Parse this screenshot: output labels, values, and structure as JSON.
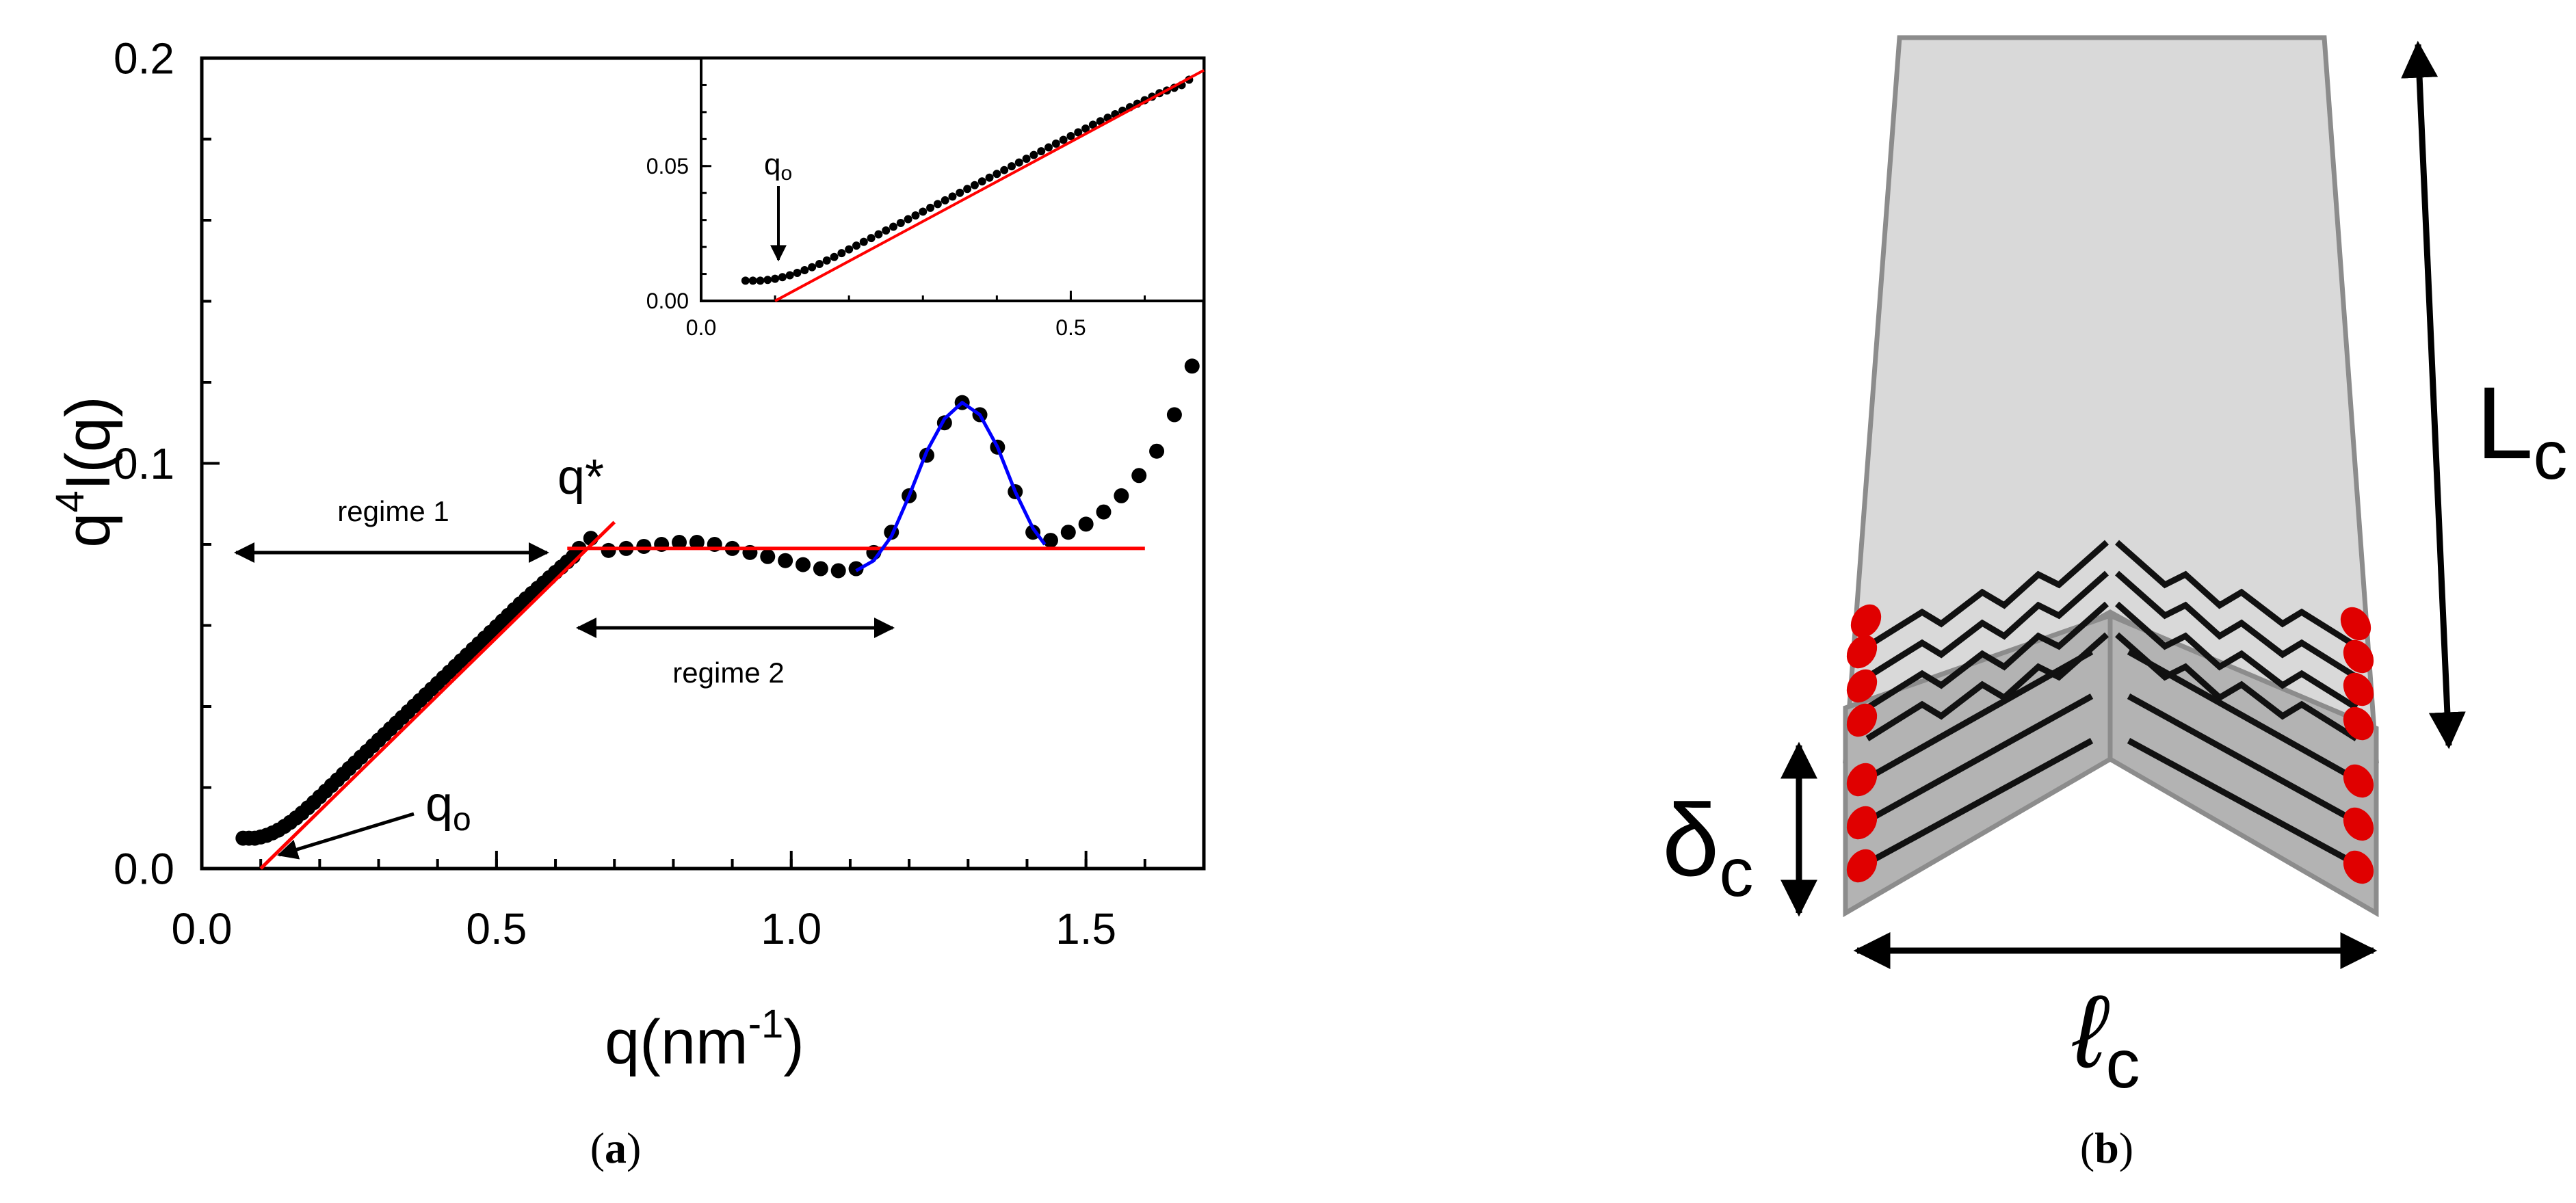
{
  "panels": {
    "a": {
      "caption_open": "(",
      "caption_letter": "a",
      "caption_close": ")"
    },
    "b": {
      "caption_open": "(",
      "caption_letter": "b",
      "caption_close": ")",
      "labels": {
        "length_main": "L",
        "length_sub": "c",
        "thickness_main": "δ",
        "thickness_sub": "c",
        "width_main": "ℓ",
        "width_sub": "c"
      },
      "colors": {
        "upper_face": "#d9d9d9",
        "lower_face": "#b3b3b3",
        "chain_ends": "#e00000",
        "chains": "#111111"
      }
    }
  },
  "chart_data": [
    {
      "type": "scatter",
      "title": "",
      "xlabel": "q(nm",
      "xlabel_sup": "-1",
      "xlabel_close": ")",
      "ylabel_base": "q",
      "ylabel_sup": "4",
      "ylabel_rest": "I(q)",
      "xlim": [
        0.0,
        1.7
      ],
      "ylim": [
        0.0,
        0.2
      ],
      "x_major_ticks": [
        0.0,
        0.5,
        1.0,
        1.5
      ],
      "x_tick_labels": [
        "0.0",
        "0.5",
        "1.0",
        "1.5"
      ],
      "y_major_ticks": [
        0.0,
        0.1,
        0.2
      ],
      "y_tick_labels": [
        "0.0",
        "0.1",
        "0.2"
      ],
      "x_minor_step": 0.1,
      "y_minor_step": 0.02,
      "grid": false,
      "colors": {
        "points": "#000000",
        "linear_fit": "#ff0000",
        "peak_fit": "#0000ff"
      },
      "series": [
        {
          "kind": "points",
          "x": [
            0.07,
            0.08,
            0.09,
            0.1,
            0.11,
            0.12,
            0.13,
            0.14,
            0.15,
            0.16,
            0.17,
            0.18,
            0.19,
            0.2,
            0.21,
            0.22,
            0.23,
            0.24,
            0.25,
            0.26,
            0.27,
            0.28,
            0.29,
            0.3,
            0.31,
            0.32,
            0.33,
            0.34,
            0.35,
            0.36,
            0.37,
            0.38,
            0.39,
            0.4,
            0.41,
            0.42,
            0.43,
            0.44,
            0.45,
            0.46,
            0.47,
            0.48,
            0.49,
            0.5,
            0.51,
            0.52,
            0.53,
            0.54,
            0.55,
            0.56,
            0.57,
            0.58,
            0.59,
            0.6,
            0.61,
            0.62,
            0.63,
            0.64,
            0.66,
            0.69,
            0.72,
            0.75,
            0.78,
            0.81,
            0.84,
            0.87,
            0.9,
            0.93,
            0.96,
            0.99,
            1.02,
            1.05,
            1.08,
            1.11,
            1.14,
            1.17,
            1.2,
            1.23,
            1.26,
            1.29,
            1.32,
            1.35,
            1.38,
            1.41,
            1.44,
            1.47,
            1.5,
            1.53,
            1.56,
            1.59,
            1.62,
            1.65,
            1.68
          ],
          "y": [
            0.0075,
            0.0075,
            0.0075,
            0.0078,
            0.0082,
            0.0088,
            0.0095,
            0.0104,
            0.0114,
            0.0125,
            0.0137,
            0.015,
            0.0163,
            0.0177,
            0.0191,
            0.0205,
            0.0219,
            0.0233,
            0.0247,
            0.0261,
            0.0275,
            0.0289,
            0.0303,
            0.0317,
            0.0331,
            0.0345,
            0.0359,
            0.0373,
            0.0387,
            0.0401,
            0.0415,
            0.0429,
            0.0443,
            0.0457,
            0.0471,
            0.0485,
            0.0499,
            0.0513,
            0.0527,
            0.0541,
            0.0555,
            0.0569,
            0.0583,
            0.0597,
            0.0611,
            0.0625,
            0.0639,
            0.0653,
            0.0666,
            0.0679,
            0.0692,
            0.0705,
            0.0718,
            0.0731,
            0.0744,
            0.0757,
            0.077,
            0.079,
            0.0815,
            0.0785,
            0.079,
            0.0795,
            0.08,
            0.0805,
            0.0805,
            0.08,
            0.079,
            0.078,
            0.077,
            0.076,
            0.075,
            0.074,
            0.0735,
            0.074,
            0.078,
            0.083,
            0.092,
            0.102,
            0.11,
            0.115,
            0.112,
            0.104,
            0.093,
            0.083,
            0.081,
            0.083,
            0.085,
            0.088,
            0.092,
            0.097,
            0.103,
            0.112,
            0.124
          ]
        },
        {
          "kind": "line",
          "x": [
            0.1,
            0.7
          ],
          "y": [
            0.0,
            0.0855
          ]
        },
        {
          "kind": "line",
          "x": [
            0.62,
            1.6
          ],
          "y": [
            0.079,
            0.079
          ]
        },
        {
          "kind": "curve",
          "x": [
            1.11,
            1.14,
            1.17,
            1.2,
            1.23,
            1.26,
            1.29,
            1.32,
            1.35,
            1.38,
            1.41,
            1.43
          ],
          "y": [
            0.0735,
            0.076,
            0.082,
            0.092,
            0.103,
            0.111,
            0.115,
            0.112,
            0.104,
            0.093,
            0.084,
            0.08
          ]
        }
      ],
      "annotations": [
        {
          "text": "regime 1",
          "x0": 0.07,
          "x1": 0.62,
          "y": 0.078
        },
        {
          "text": "regime 2",
          "x0": 0.64,
          "x1": 1.18,
          "y": 0.059
        },
        {
          "text": "q*"
        },
        {
          "text": "q",
          "sub": "o"
        }
      ]
    },
    {
      "type": "scatter",
      "title": "",
      "inset": true,
      "xlabel": "",
      "ylabel": "",
      "xlim": [
        0.0,
        0.68
      ],
      "ylim": [
        0.0,
        0.09
      ],
      "x_major_ticks": [
        0.0,
        0.5
      ],
      "x_tick_labels": [
        "0.0",
        "0.5"
      ],
      "y_major_ticks": [
        0.0,
        0.05
      ],
      "y_tick_labels": [
        "0.00",
        "0.05"
      ],
      "x_minor_step": 0.1,
      "y_minor_step": 0.01,
      "grid": false,
      "series": [
        {
          "kind": "points",
          "x": [
            0.06,
            0.07,
            0.08,
            0.09,
            0.1,
            0.11,
            0.12,
            0.13,
            0.14,
            0.15,
            0.16,
            0.17,
            0.18,
            0.19,
            0.2,
            0.21,
            0.22,
            0.23,
            0.24,
            0.25,
            0.26,
            0.27,
            0.28,
            0.29,
            0.3,
            0.31,
            0.32,
            0.33,
            0.34,
            0.35,
            0.36,
            0.37,
            0.38,
            0.39,
            0.4,
            0.41,
            0.42,
            0.43,
            0.44,
            0.45,
            0.46,
            0.47,
            0.48,
            0.49,
            0.5,
            0.51,
            0.52,
            0.53,
            0.54,
            0.55,
            0.56,
            0.57,
            0.58,
            0.59,
            0.6,
            0.61,
            0.62,
            0.63,
            0.64,
            0.65,
            0.66
          ],
          "y": [
            0.0075,
            0.0075,
            0.0075,
            0.0078,
            0.0082,
            0.0088,
            0.0095,
            0.0104,
            0.0114,
            0.0125,
            0.0137,
            0.015,
            0.0163,
            0.0177,
            0.0191,
            0.0205,
            0.0219,
            0.0233,
            0.0247,
            0.0261,
            0.0275,
            0.0289,
            0.0303,
            0.0317,
            0.0331,
            0.0345,
            0.0359,
            0.0373,
            0.0387,
            0.0401,
            0.0415,
            0.0429,
            0.0443,
            0.0457,
            0.0471,
            0.0485,
            0.0499,
            0.0513,
            0.0527,
            0.0541,
            0.0555,
            0.0569,
            0.0583,
            0.0597,
            0.0611,
            0.0625,
            0.0639,
            0.0653,
            0.0666,
            0.0679,
            0.0692,
            0.0705,
            0.0718,
            0.0731,
            0.0744,
            0.0757,
            0.077,
            0.078,
            0.079,
            0.08,
            0.082
          ]
        },
        {
          "kind": "line",
          "x": [
            0.1,
            0.68
          ],
          "y": [
            0.0,
            0.0855
          ]
        }
      ],
      "annotations": [
        {
          "text": "q",
          "sub": "o"
        }
      ]
    }
  ]
}
